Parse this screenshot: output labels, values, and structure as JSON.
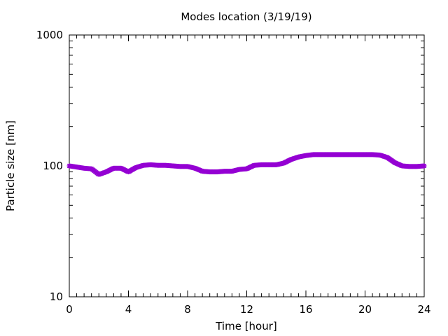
{
  "chart_data": {
    "type": "scatter",
    "title": "Modes location (3/19/19)",
    "xlabel": "Time [hour]",
    "ylabel": "Particle size [nm]",
    "xlim": [
      0,
      24
    ],
    "ylim": [
      10,
      1000
    ],
    "yscale": "log",
    "xticks": [
      0,
      4,
      8,
      12,
      16,
      20,
      24
    ],
    "xtick_labels": [
      "0",
      "4",
      "8",
      "12",
      "16",
      "20",
      "24"
    ],
    "yticks": [
      10,
      100,
      1000
    ],
    "ytick_labels": [
      "10",
      "100",
      "1000"
    ],
    "grid": false,
    "marker_color": "#9400d3",
    "marker": "star",
    "series": [
      {
        "x": [
          0,
          0.5,
          1,
          1.5,
          2,
          2.5,
          3,
          3.5,
          4,
          4.5,
          5,
          5.5,
          6,
          6.5,
          7,
          7.5,
          8,
          8.5,
          9,
          9.5,
          10,
          10.5,
          11,
          11.5,
          12,
          12.5,
          13,
          13.5,
          14,
          14.5,
          15,
          15.5,
          16,
          16.5,
          17,
          17.5,
          18,
          18.5,
          19,
          19.5,
          20,
          20.5,
          21,
          21.5,
          22,
          22.5,
          23,
          23.5,
          24
        ],
        "y": [
          100,
          98,
          96,
          95,
          86,
          90,
          96,
          96,
          90,
          97,
          101,
          102,
          101,
          101,
          100,
          99,
          99,
          96,
          91,
          90,
          90,
          91,
          91,
          94,
          95,
          101,
          102,
          102,
          102,
          105,
          112,
          117,
          120,
          122,
          122,
          122,
          122,
          122,
          122,
          122,
          122,
          122,
          121,
          116,
          106,
          100,
          99,
          99,
          100
        ]
      }
    ]
  }
}
